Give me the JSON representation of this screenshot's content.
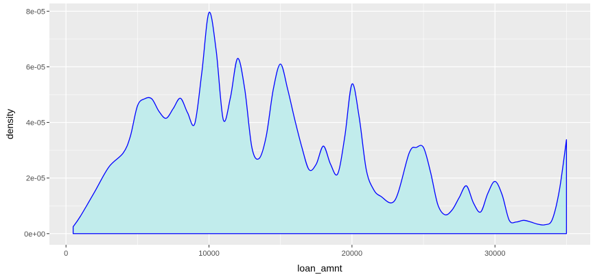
{
  "chart_data": {
    "type": "area",
    "title": "",
    "xlabel": "loan_amnt",
    "ylabel": "density",
    "xlim": [
      -1160,
      36660
    ],
    "ylim": [
      -4e-06,
      8.28e-05
    ],
    "x_ticks": [
      0,
      10000,
      20000,
      30000
    ],
    "x_tick_labels": [
      "0",
      "10000",
      "20000",
      "30000"
    ],
    "y_ticks": [
      0,
      2e-05,
      4e-05,
      6e-05,
      8e-05
    ],
    "y_tick_labels": [
      "0e+00",
      "2e-05",
      "4e-05",
      "6e-05",
      "8e-05"
    ],
    "grid": true,
    "legend": "none",
    "colors": {
      "fill": "#c1ecec",
      "line": "#0000ff",
      "panel": "#ebebeb",
      "grid": "#ffffff"
    },
    "series": [
      {
        "x": [
          500,
          1000,
          2000,
          3000,
          4000,
          4500,
          5000,
          5500,
          6000,
          6500,
          7000,
          7500,
          8000,
          8500,
          9000,
          9500,
          10000,
          10500,
          11000,
          11500,
          12000,
          12500,
          13000,
          13500,
          14000,
          14500,
          15000,
          15500,
          16000,
          16500,
          17000,
          17500,
          18000,
          18500,
          19000,
          19500,
          20000,
          20500,
          21000,
          21500,
          22000,
          23000,
          24000,
          24500,
          25000,
          25500,
          26000,
          26500,
          27000,
          27500,
          28000,
          28500,
          29000,
          29500,
          30000,
          30500,
          31000,
          31500,
          32000,
          32500,
          33000,
          33500,
          34000,
          34500,
          35000
        ],
        "y": [
          2.5e-06,
          6.2e-06,
          1.5e-05,
          2.4e-05,
          2.9e-05,
          3.5e-05,
          4.6e-05,
          4.85e-05,
          4.85e-05,
          4.4e-05,
          4.15e-05,
          4.5e-05,
          4.87e-05,
          4.35e-05,
          3.95e-05,
          5.8e-05,
          7.95e-05,
          6.6e-05,
          4.1e-05,
          4.9e-05,
          6.3e-05,
          5.2e-05,
          3.1e-05,
          2.7e-05,
          3.5e-05,
          5.2e-05,
          6.1e-05,
          5.2e-05,
          4.1e-05,
          3.1e-05,
          2.3e-05,
          2.5e-05,
          3.15e-05,
          2.5e-05,
          2.15e-05,
          3.5e-05,
          5.38e-05,
          4.2e-05,
          2.3e-05,
          1.6e-05,
          1.35e-05,
          1.2e-05,
          2.9e-05,
          3.1e-05,
          3.1e-05,
          2.2e-05,
          1.05e-05,
          6.8e-06,
          8.5e-06,
          1.3e-05,
          1.72e-05,
          1.1e-05,
          7.8e-06,
          1.45e-05,
          1.88e-05,
          1.4e-05,
          4.8e-06,
          4.2e-06,
          4.8e-06,
          4.2e-06,
          3.4e-06,
          3.2e-06,
          5e-06,
          1.55e-05,
          3.38e-05
        ]
      }
    ]
  }
}
